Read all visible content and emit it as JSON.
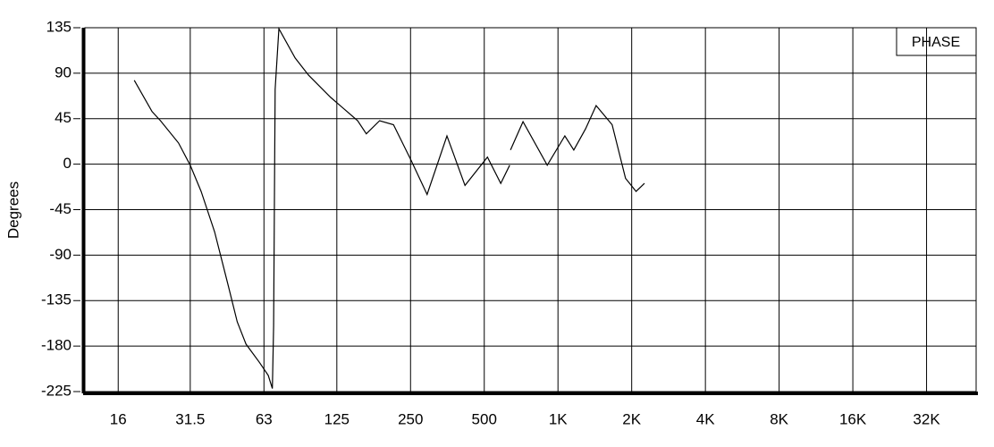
{
  "chart_data": {
    "type": "line",
    "title": "PHASE",
    "y_label": "Degrees",
    "xscale": "log",
    "grid": true,
    "color": "#000000",
    "x": [
      18.6,
      22,
      23.8,
      28.2,
      31.5,
      34.9,
      39.6,
      45,
      49,
      53.2,
      60.3,
      65.6,
      68.2,
      69,
      70,
      72.5,
      84.5,
      95.8,
      118,
      152,
      165,
      187,
      213,
      251,
      292,
      352,
      417,
      515,
      584,
      635,
      637,
      640,
      720,
      904,
      1067,
      1160,
      1296,
      1432,
      1664,
      1888,
      2085,
      2256
    ],
    "values": [
      83,
      52,
      43,
      21,
      -1,
      -27,
      -67,
      -120,
      -156,
      -178,
      -196,
      -209,
      -222,
      -160,
      74,
      134,
      105,
      88,
      66,
      43,
      30,
      43,
      39,
      4,
      -30,
      28,
      -21,
      7,
      -19,
      -1,
      null,
      14,
      42,
      -1,
      28,
      14,
      35,
      58,
      39,
      -14,
      -27,
      -19
    ],
    "xlim": [
      11.7,
      51000
    ],
    "ylim": [
      -225,
      135
    ],
    "xticks": [
      16,
      31.5,
      63,
      125,
      250,
      500,
      {
        "value": 1000,
        "label": "1K"
      },
      {
        "value": 2000,
        "label": "2K"
      },
      {
        "value": 4000,
        "label": "4K"
      },
      {
        "value": 8000,
        "label": "8K"
      },
      {
        "value": 16000,
        "label": "16K"
      },
      {
        "value": 32000,
        "label": "32K"
      }
    ],
    "yticks": [
      -225,
      -180,
      -135,
      -90,
      -45,
      0,
      45,
      90,
      135
    ]
  }
}
